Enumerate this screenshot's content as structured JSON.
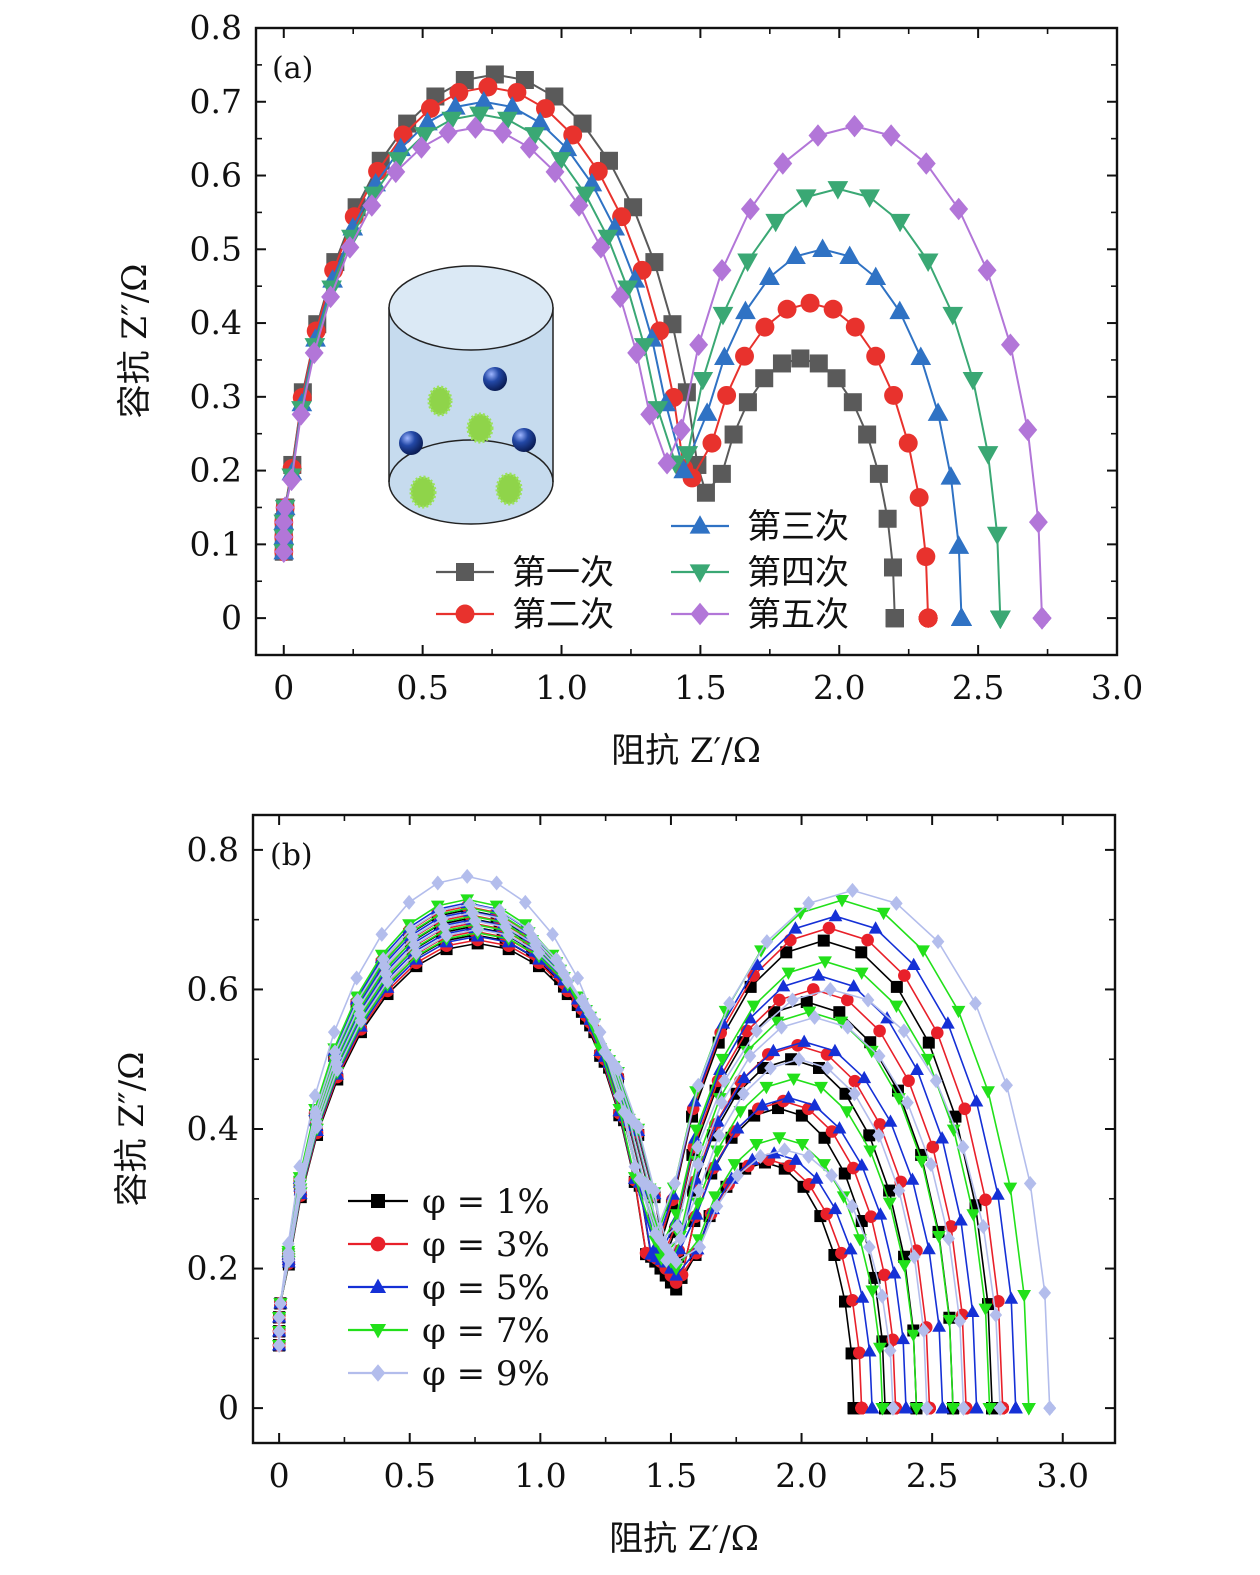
{
  "chart_data": [
    {
      "type": "line",
      "panel_label": "(a)",
      "xlabel": "阻抗 Z′/Ω",
      "ylabel": "容抗 Z″/Ω",
      "xlim": [
        -0.1,
        3.0
      ],
      "ylim": [
        -0.05,
        0.8
      ],
      "x_ticks": [
        "0",
        "0.5",
        "1.0",
        "1.5",
        "2.0",
        "2.5",
        "3.0"
      ],
      "y_ticks": [
        "0",
        "0.1",
        "0.2",
        "0.3",
        "0.4",
        "0.5",
        "0.6",
        "0.7",
        "0.8"
      ],
      "grid": false,
      "legend_position": "bottom-center, two columns",
      "inset": "cylinder cell schematic with blue spheres and green particles",
      "series": [
        {
          "name": "第一次",
          "color": "#5a5a5a",
          "marker": "square",
          "arc1": {
            "x_start": 0.0,
            "x_end": 1.52,
            "peak": 0.737
          },
          "arc2": {
            "x_start": 1.52,
            "x_end": 2.2,
            "peak": 0.352
          },
          "y_min": 0.17
        },
        {
          "name": "第二次",
          "color": "#e8322d",
          "marker": "circle",
          "arc1": {
            "x_start": 0.0,
            "x_end": 1.47,
            "peak": 0.72
          },
          "arc2": {
            "x_start": 1.47,
            "x_end": 2.32,
            "peak": 0.427
          },
          "y_min": 0.19
        },
        {
          "name": "第三次",
          "color": "#2f72c4",
          "marker": "triangle-up",
          "arc1": {
            "x_start": 0.0,
            "x_end": 1.44,
            "peak": 0.7
          },
          "arc2": {
            "x_start": 1.44,
            "x_end": 2.44,
            "peak": 0.5
          },
          "y_min": 0.2
        },
        {
          "name": "第四次",
          "color": "#3aa874",
          "marker": "triangle-down",
          "arc1": {
            "x_start": 0.0,
            "x_end": 1.41,
            "peak": 0.683
          },
          "arc2": {
            "x_start": 1.41,
            "x_end": 2.58,
            "peak": 0.582
          },
          "y_min": 0.21
        },
        {
          "name": "第五次",
          "color": "#b276d8",
          "marker": "diamond",
          "arc1": {
            "x_start": 0.0,
            "x_end": 1.38,
            "peak": 0.665
          },
          "arc2": {
            "x_start": 1.38,
            "x_end": 2.73,
            "peak": 0.667
          },
          "y_min": 0.21
        }
      ]
    },
    {
      "type": "line",
      "panel_label": "(b)",
      "xlabel": "阻抗 Z′/Ω",
      "ylabel": "容抗 Z″/Ω",
      "xlim": [
        -0.1,
        3.2
      ],
      "ylim": [
        -0.05,
        0.85
      ],
      "x_ticks": [
        "0",
        "0.5",
        "1.0",
        "1.5",
        "2.0",
        "2.5",
        "3.0"
      ],
      "y_ticks": [
        "0",
        "0.2",
        "0.4",
        "0.6",
        "0.8"
      ],
      "grid": false,
      "legend_position": "bottom-left",
      "series": [
        {
          "name": "φ = 1%",
          "color": "#000000",
          "marker": "square",
          "arc1_peaks": [
            0.666,
            0.678,
            0.69,
            0.702,
            0.714
          ],
          "arc2_peaks": [
            0.352,
            0.43,
            0.5,
            0.582,
            0.67
          ],
          "arc2_x_end": [
            2.2,
            2.32,
            2.44,
            2.58,
            2.73
          ]
        },
        {
          "name": "φ = 3%",
          "color": "#e8202a",
          "marker": "circle",
          "arc1_peaks": [
            0.671,
            0.683,
            0.695,
            0.707,
            0.719
          ],
          "arc2_peaks": [
            0.356,
            0.44,
            0.52,
            0.6,
            0.688
          ],
          "arc2_x_end": [
            2.23,
            2.36,
            2.49,
            2.63,
            2.77
          ]
        },
        {
          "name": "φ = 5%",
          "color": "#1530d6",
          "marker": "triangle-up",
          "arc1_peaks": [
            0.676,
            0.688,
            0.7,
            0.712,
            0.724
          ],
          "arc2_peaks": [
            0.365,
            0.445,
            0.525,
            0.62,
            0.705
          ],
          "arc2_x_end": [
            2.27,
            2.4,
            2.54,
            2.67,
            2.82
          ]
        },
        {
          "name": "φ = 7%",
          "color": "#22e01a",
          "marker": "triangle-down",
          "arc1_peaks": [
            0.681,
            0.693,
            0.705,
            0.717,
            0.729
          ],
          "arc2_peaks": [
            0.388,
            0.472,
            0.568,
            0.64,
            0.728
          ],
          "arc2_x_end": [
            2.31,
            2.44,
            2.58,
            2.72,
            2.87
          ]
        },
        {
          "name": "φ = 9%",
          "color": "#b3bdec",
          "marker": "diamond",
          "arc1_peaks": [
            0.686,
            0.698,
            0.71,
            0.722,
            0.762
          ],
          "arc2_peaks": [
            0.37,
            0.5,
            0.56,
            0.6,
            0.742
          ],
          "arc2_x_end": [
            2.35,
            2.48,
            2.62,
            2.76,
            2.95
          ]
        }
      ]
    }
  ]
}
